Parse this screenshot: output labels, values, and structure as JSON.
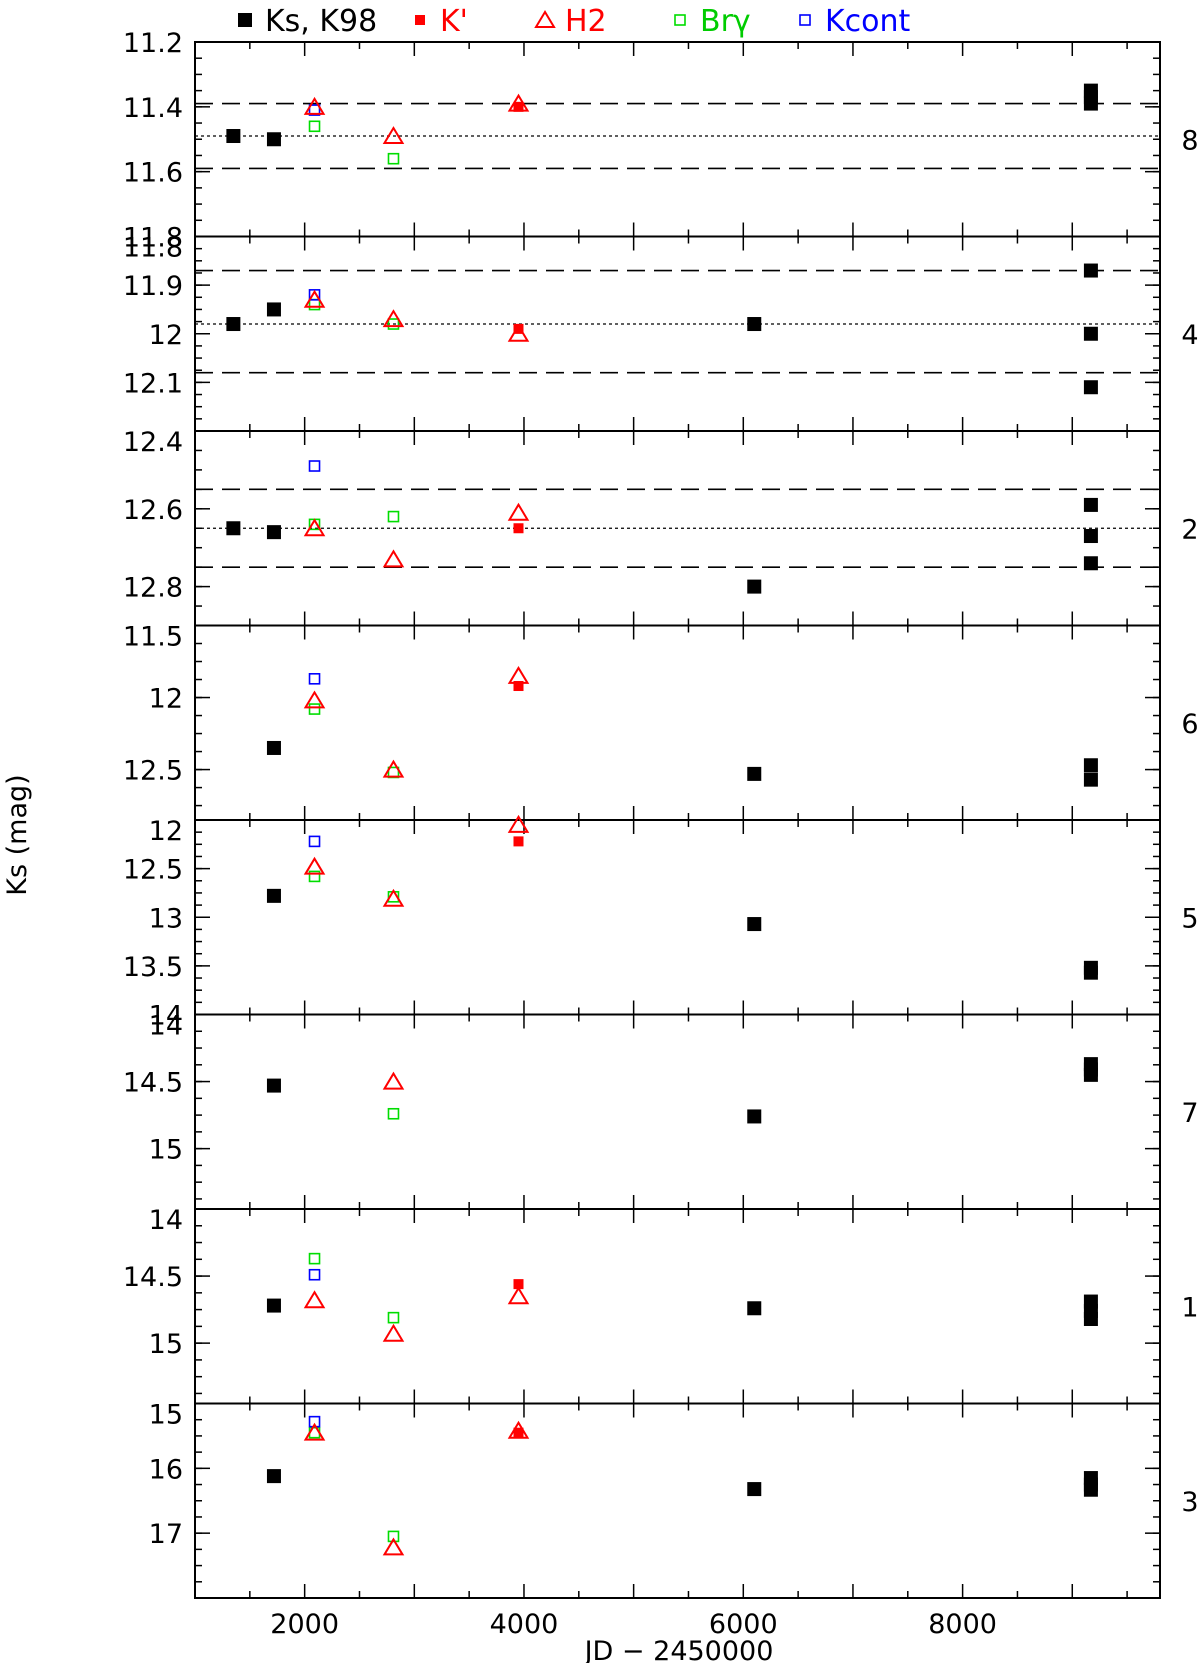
{
  "chart_data": {
    "type": "scatter",
    "xlabel": "JD − 2450000",
    "ylabel": "Ks (mag)",
    "xlim": [
      1000,
      9800
    ],
    "x_ticks": [
      2000,
      4000,
      6000,
      8000
    ],
    "legend": {
      "placement": "top",
      "entries": [
        {
          "label": "Ks, K98",
          "series": "ks"
        },
        {
          "label": "K'",
          "series": "kprime"
        },
        {
          "label": "H2",
          "series": "h2"
        },
        {
          "label": "Brγ",
          "series": "brg"
        },
        {
          "label": "Kcont",
          "series": "kcont"
        }
      ]
    },
    "series_styles": {
      "ks": {
        "color": "#000000",
        "marker": "filled-square-large"
      },
      "kprime": {
        "color": "#ff0000",
        "marker": "filled-square-small"
      },
      "h2": {
        "color": "#ff0000",
        "marker": "open-triangle"
      },
      "brg": {
        "color": "#00dd00",
        "marker": "open-square"
      },
      "kcont": {
        "color": "#0000ff",
        "marker": "open-square"
      }
    },
    "panels": [
      {
        "label": "8",
        "ylim": [
          11.2,
          11.8
        ],
        "y_inverted": true,
        "y_ticks": [
          11.2,
          11.4,
          11.6,
          11.8
        ],
        "y_tick_labels": [
          "11.2",
          "11.4",
          "11.6",
          "11.8"
        ],
        "mean": 11.49,
        "band": [
          11.39,
          11.59
        ],
        "points": {
          "ks": [
            [
              1350,
              11.49
            ],
            [
              1720,
              11.5
            ],
            [
              9170,
              11.35
            ],
            [
              9170,
              11.37
            ],
            [
              9170,
              11.39
            ]
          ],
          "kprime": [
            [
              3950,
              11.4
            ]
          ],
          "h2": [
            [
              2090,
              11.4
            ],
            [
              2810,
              11.49
            ],
            [
              3950,
              11.39
            ]
          ],
          "brg": [
            [
              2090,
              11.46
            ],
            [
              2810,
              11.56
            ]
          ],
          "kcont": [
            [
              2090,
              11.41
            ]
          ]
        }
      },
      {
        "label": "4",
        "ylim": [
          11.8,
          12.2
        ],
        "y_inverted": true,
        "y_ticks": [
          11.8,
          11.9,
          12.0,
          12.1
        ],
        "y_tick_labels": [
          "11.8",
          "11.9",
          "12",
          "12.1"
        ],
        "mean": 11.98,
        "band": [
          11.87,
          12.08
        ],
        "points": {
          "ks": [
            [
              1350,
              11.98
            ],
            [
              1720,
              11.95
            ],
            [
              6100,
              11.98
            ],
            [
              9170,
              11.87
            ],
            [
              9170,
              12.0
            ],
            [
              9170,
              12.11
            ]
          ],
          "kprime": [
            [
              3950,
              11.99
            ]
          ],
          "h2": [
            [
              2090,
              11.93
            ],
            [
              2810,
              11.97
            ],
            [
              3950,
              12.0
            ]
          ],
          "brg": [
            [
              2090,
              11.94
            ],
            [
              2810,
              11.98
            ]
          ],
          "kcont": [
            [
              2090,
              11.92
            ]
          ]
        }
      },
      {
        "label": "2",
        "ylim": [
          12.4,
          12.9
        ],
        "y_inverted": true,
        "y_ticks": [
          12.4,
          12.6,
          12.8
        ],
        "y_tick_labels": [
          "12.4",
          "12.6",
          "12.8"
        ],
        "mean": 12.65,
        "band": [
          12.55,
          12.75
        ],
        "points": {
          "ks": [
            [
              1350,
              12.65
            ],
            [
              1720,
              12.66
            ],
            [
              6100,
              12.8
            ],
            [
              9170,
              12.59
            ],
            [
              9170,
              12.67
            ],
            [
              9170,
              12.74
            ]
          ],
          "kprime": [
            [
              3950,
              12.65
            ]
          ],
          "h2": [
            [
              2090,
              12.65
            ],
            [
              2810,
              12.73
            ],
            [
              3950,
              12.61
            ]
          ],
          "brg": [
            [
              2090,
              12.64
            ],
            [
              2810,
              12.62
            ]
          ],
          "kcont": [
            [
              2090,
              12.49
            ]
          ]
        }
      },
      {
        "label": "6",
        "ylim": [
          11.5,
          12.85
        ],
        "y_inverted": true,
        "y_ticks": [
          11.5,
          12.0,
          12.5
        ],
        "y_tick_labels": [
          "11.5",
          "12",
          "12.5"
        ],
        "points": {
          "ks": [
            [
              1720,
              12.35
            ],
            [
              6100,
              12.53
            ],
            [
              9170,
              12.47
            ],
            [
              9170,
              12.57
            ]
          ],
          "kprime": [
            [
              3950,
              11.92
            ]
          ],
          "h2": [
            [
              2090,
              12.02
            ],
            [
              2810,
              12.5
            ],
            [
              3950,
              11.85
            ]
          ],
          "brg": [
            [
              2090,
              12.08
            ],
            [
              2810,
              12.52
            ]
          ],
          "kcont": [
            [
              2090,
              11.87
            ]
          ]
        }
      },
      {
        "label": "5",
        "ylim": [
          12.0,
          14.0
        ],
        "y_inverted": true,
        "y_ticks": [
          12.0,
          12.5,
          13.0,
          13.5,
          14.0
        ],
        "y_tick_labels": [
          "12",
          "12.5",
          "13",
          "13.5",
          "14"
        ],
        "points": {
          "ks": [
            [
              1720,
              12.78
            ],
            [
              6100,
              13.07
            ],
            [
              9170,
              13.52
            ],
            [
              9170,
              13.57
            ]
          ],
          "kprime": [
            [
              3950,
              12.22
            ]
          ],
          "h2": [
            [
              2090,
              12.48
            ],
            [
              2810,
              12.81
            ],
            [
              3950,
              12.05
            ]
          ],
          "brg": [
            [
              2090,
              12.58
            ],
            [
              2810,
              12.79
            ]
          ],
          "kcont": [
            [
              2090,
              12.22
            ]
          ]
        }
      },
      {
        "label": "7",
        "ylim": [
          14.0,
          15.45
        ],
        "y_inverted": true,
        "y_ticks": [
          14.0,
          14.5,
          15.0
        ],
        "y_tick_labels": [
          "14",
          "14.5",
          "15"
        ],
        "points": {
          "ks": [
            [
              1720,
              14.53
            ],
            [
              6100,
              14.76
            ],
            [
              9170,
              14.37
            ],
            [
              9170,
              14.41
            ],
            [
              9170,
              14.45
            ]
          ],
          "h2": [
            [
              2810,
              14.5
            ]
          ],
          "brg": [
            [
              2810,
              14.74
            ]
          ]
        }
      },
      {
        "label": "1",
        "ylim": [
          14.0,
          15.45
        ],
        "y_inverted": true,
        "y_ticks": [
          14.0,
          14.5,
          15.0
        ],
        "y_tick_labels": [
          "14",
          "14.5",
          "15"
        ],
        "points": {
          "ks": [
            [
              1720,
              14.72
            ],
            [
              6100,
              14.74
            ],
            [
              9170,
              14.69
            ],
            [
              9170,
              14.76
            ],
            [
              9170,
              14.82
            ]
          ],
          "kprime": [
            [
              3950,
              14.56
            ]
          ],
          "h2": [
            [
              2090,
              14.68
            ],
            [
              2810,
              14.93
            ],
            [
              3950,
              14.65
            ]
          ],
          "brg": [
            [
              2090,
              14.37
            ],
            [
              2810,
              14.81
            ]
          ],
          "kcont": [
            [
              2090,
              14.49
            ]
          ]
        }
      },
      {
        "label": "3",
        "ylim": [
          15.0,
          18.0
        ],
        "y_inverted": true,
        "y_ticks": [
          15.0,
          16.0,
          17.0
        ],
        "y_tick_labels": [
          "15",
          "16",
          "17"
        ],
        "points": {
          "ks": [
            [
              1720,
              16.12
            ],
            [
              6100,
              16.32
            ],
            [
              9170,
              16.15
            ],
            [
              9170,
              16.25
            ],
            [
              9170,
              16.33
            ]
          ],
          "kprime": [
            [
              3950,
              15.45
            ]
          ],
          "h2": [
            [
              2090,
              15.45
            ],
            [
              2810,
              17.22
            ],
            [
              3950,
              15.42
            ]
          ],
          "brg": [
            [
              2090,
              15.45
            ],
            [
              2810,
              17.05
            ]
          ],
          "kcont": [
            [
              2090,
              15.28
            ]
          ]
        }
      }
    ]
  }
}
